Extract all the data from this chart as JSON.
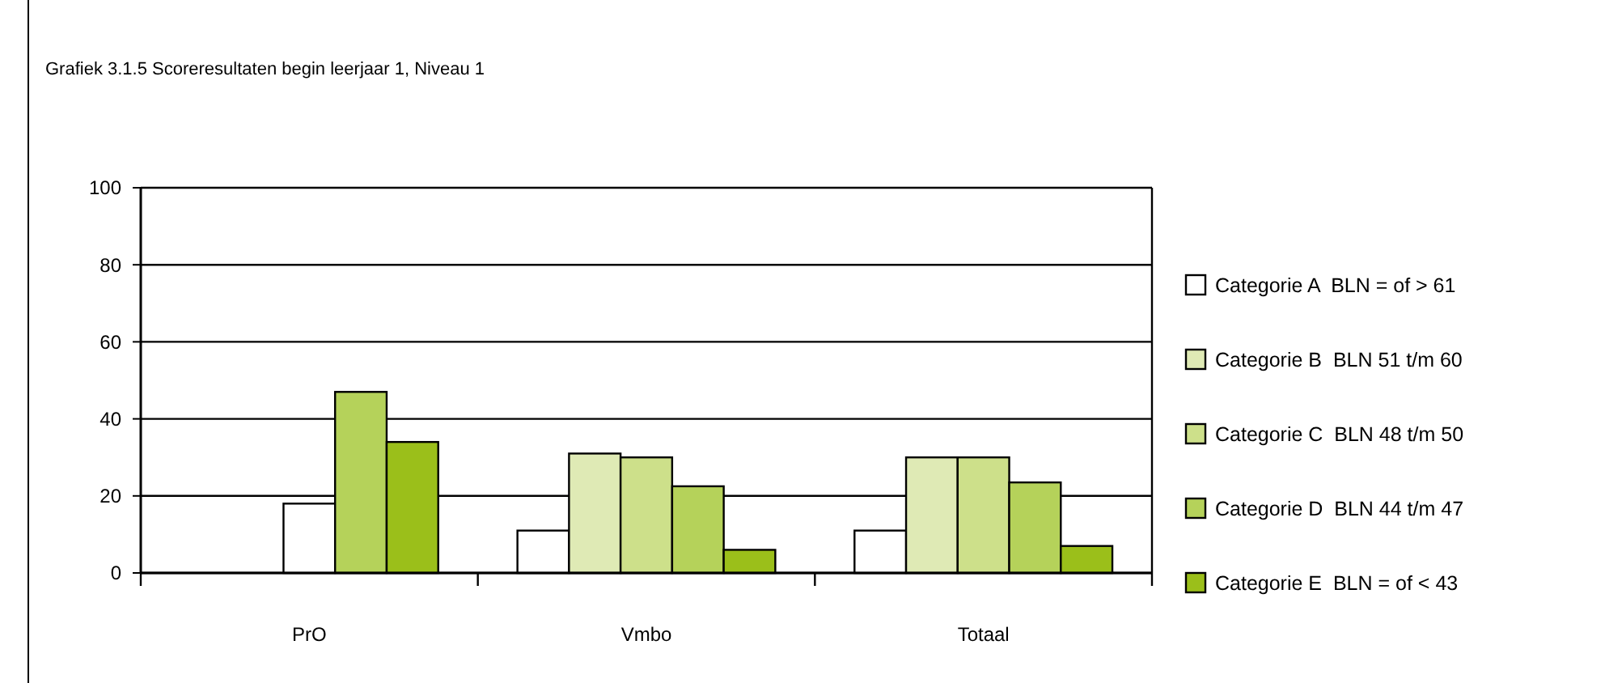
{
  "chart_data": {
    "type": "bar",
    "title": "Grafiek 3.1.5 Scoreresultaten begin leerjaar 1, Niveau 1",
    "categories": [
      "PrO",
      "Vmbo",
      "Totaal"
    ],
    "series": [
      {
        "name": "Categorie A  BLN = of > 61",
        "color": "#ffffff",
        "values": [
          null,
          11,
          11
        ]
      },
      {
        "name": "Categorie B  BLN 51 t/m 60",
        "color": "#dfeab5",
        "values": [
          null,
          31,
          30
        ]
      },
      {
        "name": "Categorie C  BLN 48 t/m 50",
        "color": "#cde08a",
        "colors": [
          "#ffffff",
          "#cde08a",
          "#cde08a"
        ],
        "values": [
          18,
          30,
          30
        ]
      },
      {
        "name": "Categorie D  BLN 44 t/m 47",
        "color": "#b5d25a",
        "values": [
          47,
          22.5,
          23.5
        ]
      },
      {
        "name": "Categorie E  BLN = of < 43",
        "color": "#9bbf1a",
        "values": [
          34,
          6,
          7
        ]
      }
    ],
    "ylim": [
      0,
      100
    ],
    "yticks": [
      0,
      20,
      40,
      60,
      80,
      100
    ],
    "grid": "y",
    "legend": "right"
  }
}
